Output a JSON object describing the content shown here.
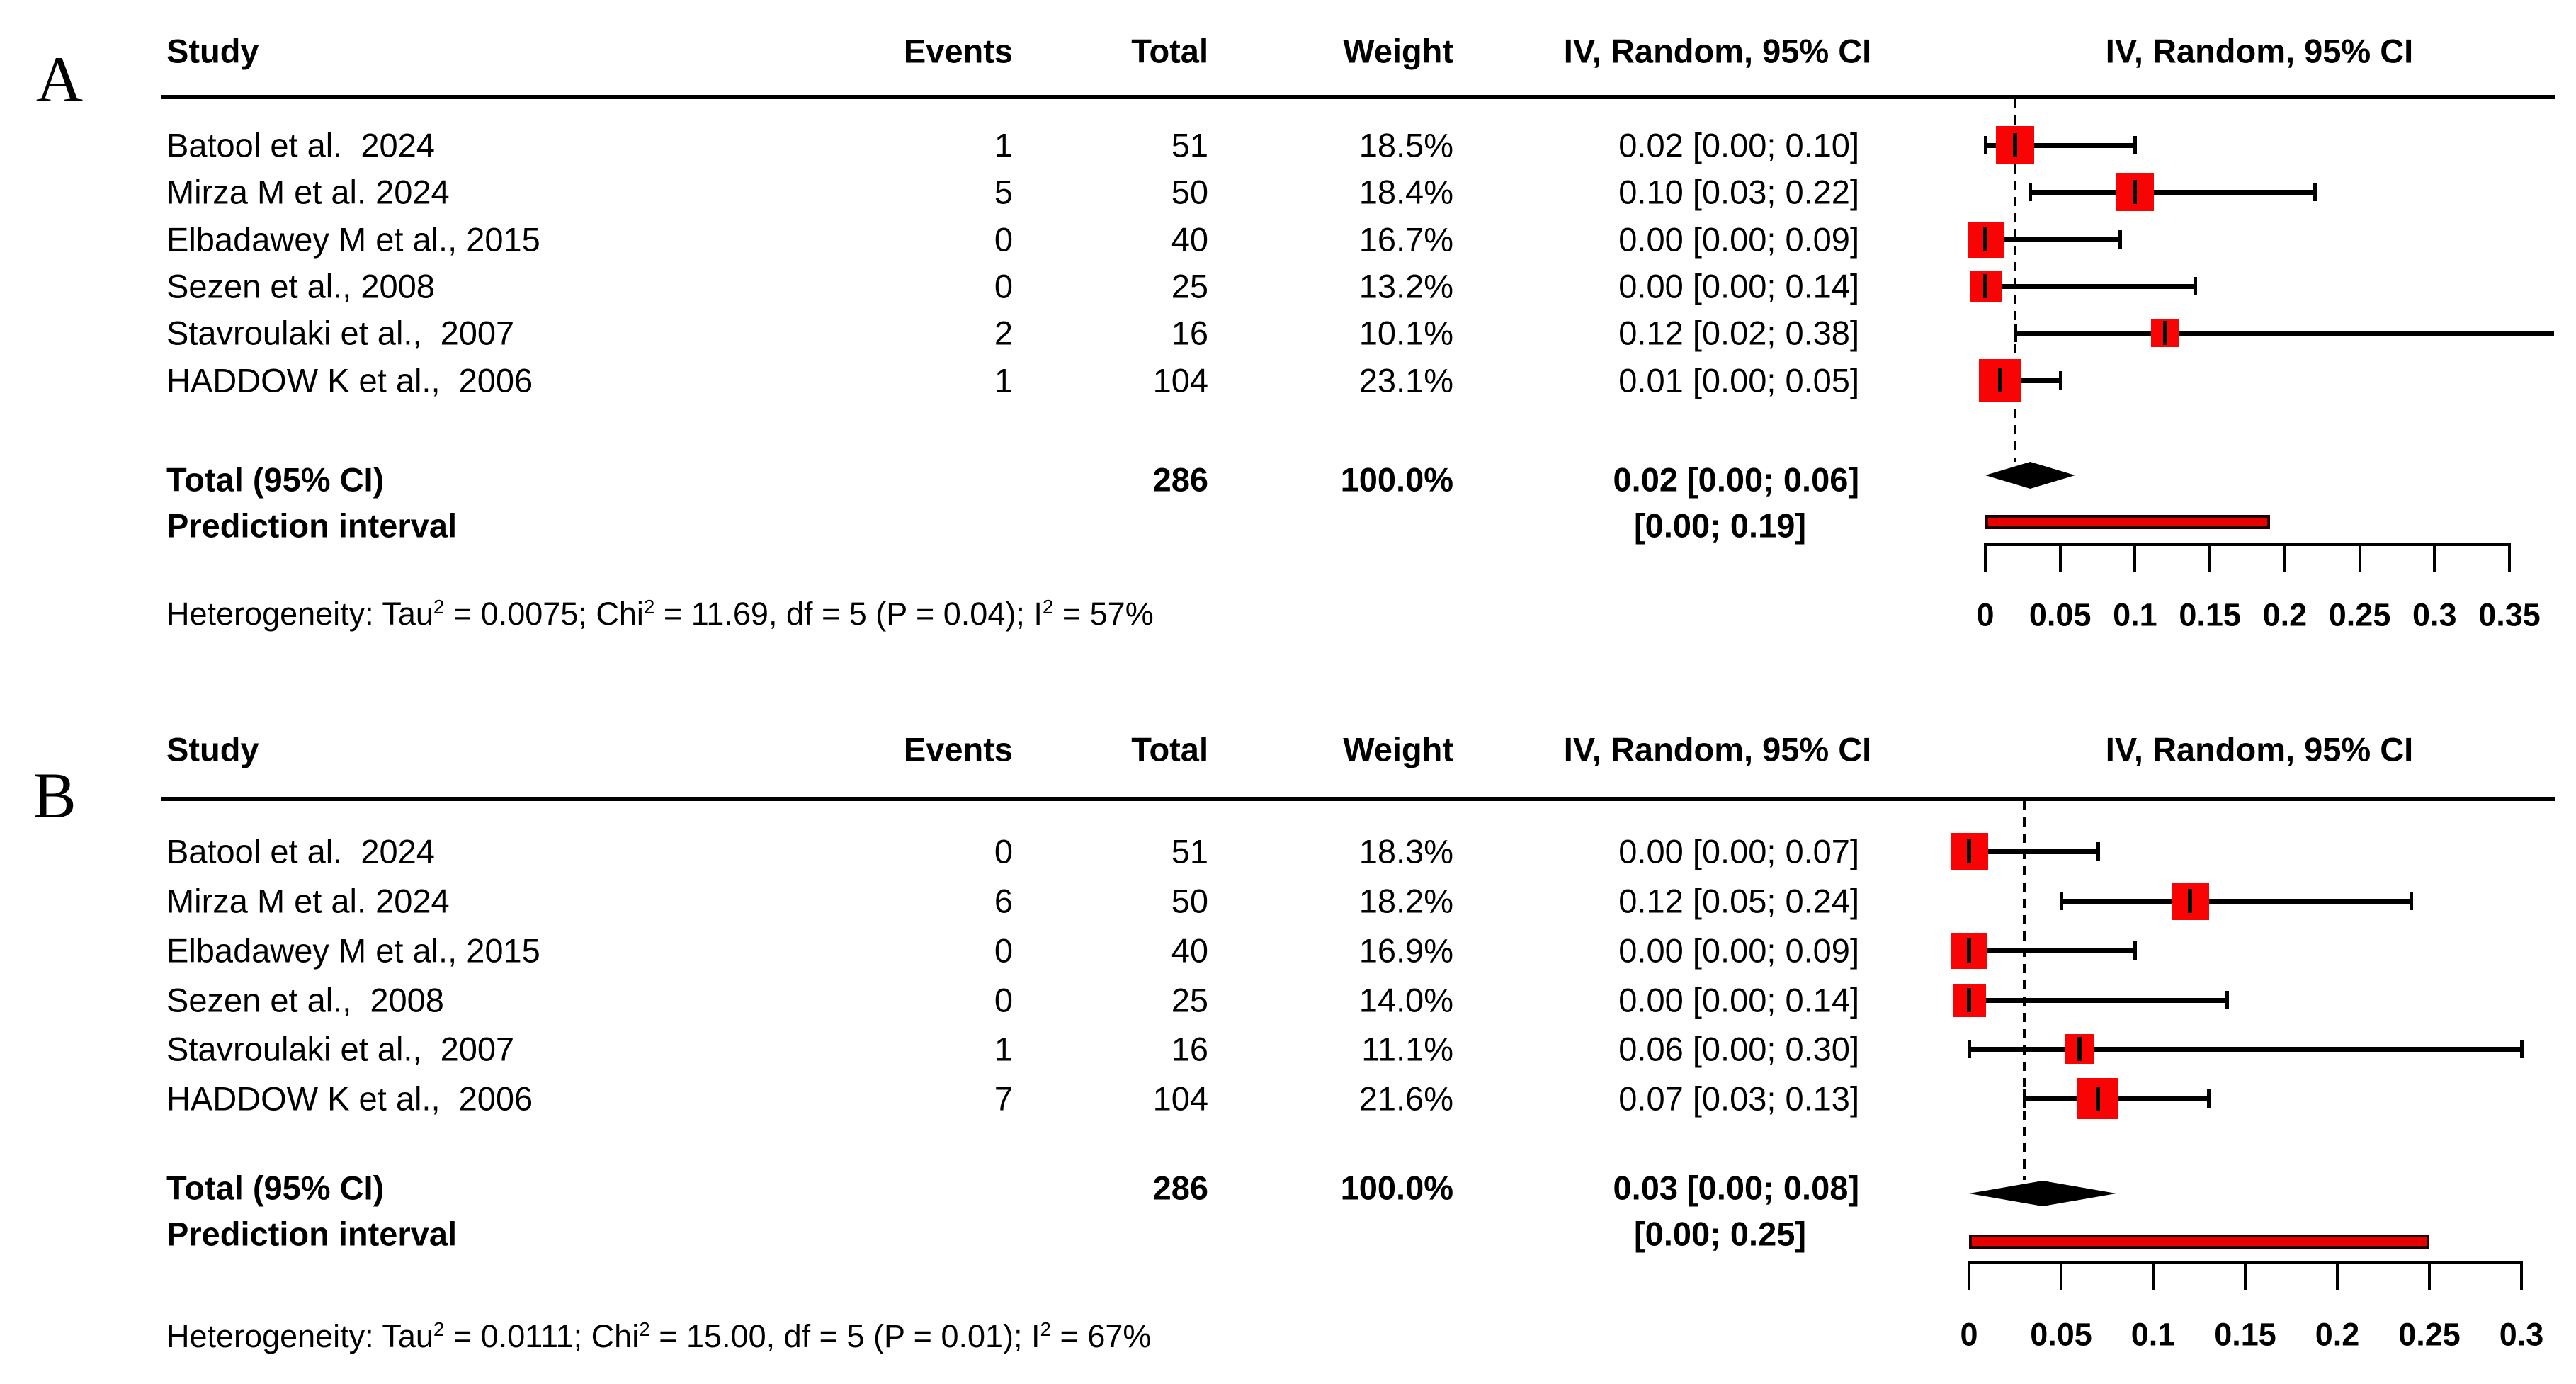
{
  "chart_data": [
    {
      "type": "scatter",
      "subtype": "forest-plot",
      "panel_label": "A",
      "columns": {
        "study": "Study",
        "events": "Events",
        "total": "Total",
        "weight": "Weight",
        "effect": "IV, Random, 95% CI",
        "plot": "IV, Random, 95% CI"
      },
      "studies": [
        {
          "study": "Batool et al.  2024",
          "events": "1",
          "total": "51",
          "weight": "18.5%",
          "effect": "0.02 [0.00; 0.10]",
          "est": 0.02,
          "lo": 0.0,
          "hi": 0.1,
          "w": 18.5
        },
        {
          "study": "Mirza M et al. 2024",
          "events": "5",
          "total": "50",
          "weight": "18.4%",
          "effect": "0.10 [0.03; 0.22]",
          "est": 0.1,
          "lo": 0.03,
          "hi": 0.22,
          "w": 18.4
        },
        {
          "study": "Elbadawey M et al., 2015",
          "events": "0",
          "total": "40",
          "weight": "16.7%",
          "effect": "0.00 [0.00; 0.09]",
          "est": 0.0,
          "lo": 0.0,
          "hi": 0.09,
          "w": 16.7
        },
        {
          "study": "Sezen et al., 2008",
          "events": "0",
          "total": "25",
          "weight": "13.2%",
          "effect": "0.00 [0.00; 0.14]",
          "est": 0.0,
          "lo": 0.0,
          "hi": 0.14,
          "w": 13.2
        },
        {
          "study": "Stavroulaki et al.,  2007",
          "events": "2",
          "total": "16",
          "weight": "10.1%",
          "effect": "0.12 [0.02; 0.38]",
          "est": 0.12,
          "lo": 0.02,
          "hi": 0.38,
          "w": 10.1
        },
        {
          "study": "HADDOW K et al.,  2006",
          "events": "1",
          "total": "104",
          "weight": "23.1%",
          "effect": "0.01 [0.00; 0.05]",
          "est": 0.01,
          "lo": 0.0,
          "hi": 0.05,
          "w": 23.1
        }
      ],
      "total": {
        "label": "Total (95% CI)",
        "total": "286",
        "weight": "100.0%",
        "effect": "0.02 [0.00; 0.06]",
        "est": 0.02,
        "lo": 0.0,
        "hi": 0.06
      },
      "prediction": {
        "label": "Prediction interval",
        "effect": "[0.00; 0.19]",
        "lo": 0.0,
        "hi": 0.19
      },
      "heterogeneity": "Heterogeneity: Tau² = 0.0075; Chi² = 11.69, df = 5 (P = 0.04); I² = 57%",
      "pooled_est": 0.02,
      "axis": {
        "min": 0,
        "max": 0.35,
        "ticks": [
          0,
          0.05,
          0.1,
          0.15,
          0.2,
          0.25,
          0.3,
          0.35
        ],
        "tick_labels": [
          "0",
          "0.05",
          "0.1",
          "0.15",
          "0.2",
          "0.25",
          "0.3",
          "0.35"
        ]
      },
      "square_color": "#f90404",
      "bar_fill": "#e60000",
      "bar_border": "#230000"
    },
    {
      "type": "scatter",
      "subtype": "forest-plot",
      "panel_label": "B",
      "columns": {
        "study": "Study",
        "events": "Events",
        "total": "Total",
        "weight": "Weight",
        "effect": "IV, Random, 95% CI",
        "plot": "IV, Random, 95% CI"
      },
      "studies": [
        {
          "study": "Batool et al.  2024",
          "events": "0",
          "total": "51",
          "weight": "18.3%",
          "effect": "0.00 [0.00; 0.07]",
          "est": 0.0,
          "lo": 0.0,
          "hi": 0.07,
          "w": 18.3
        },
        {
          "study": "Mirza M et al. 2024",
          "events": "6",
          "total": "50",
          "weight": "18.2%",
          "effect": "0.12 [0.05; 0.24]",
          "est": 0.12,
          "lo": 0.05,
          "hi": 0.24,
          "w": 18.2
        },
        {
          "study": "Elbadawey M et al., 2015",
          "events": "0",
          "total": "40",
          "weight": "16.9%",
          "effect": "0.00 [0.00; 0.09]",
          "est": 0.0,
          "lo": 0.0,
          "hi": 0.09,
          "w": 16.9
        },
        {
          "study": "Sezen et al.,  2008",
          "events": "0",
          "total": "25",
          "weight": "14.0%",
          "effect": "0.00 [0.00; 0.14]",
          "est": 0.0,
          "lo": 0.0,
          "hi": 0.14,
          "w": 14.0
        },
        {
          "study": "Stavroulaki et al.,  2007",
          "events": "1",
          "total": "16",
          "weight": "11.1%",
          "effect": "0.06 [0.00; 0.30]",
          "est": 0.06,
          "lo": 0.0,
          "hi": 0.3,
          "w": 11.1
        },
        {
          "study": "HADDOW K et al.,  2006",
          "events": "7",
          "total": "104",
          "weight": "21.6%",
          "effect": "0.07 [0.03; 0.13]",
          "est": 0.07,
          "lo": 0.03,
          "hi": 0.13,
          "w": 21.6
        }
      ],
      "total": {
        "label": "Total (95% CI)",
        "total": "286",
        "weight": "100.0%",
        "effect": "0.03 [0.00; 0.08]",
        "est": 0.03,
        "lo": 0.0,
        "hi": 0.08
      },
      "prediction": {
        "label": "Prediction interval",
        "effect": "[0.00; 0.25]",
        "lo": 0.0,
        "hi": 0.25
      },
      "heterogeneity": "Heterogeneity: Tau² = 0.0111; Chi² = 15.00, df = 5 (P = 0.01); I² = 67%",
      "pooled_est": 0.03,
      "axis": {
        "min": 0,
        "max": 0.3,
        "ticks": [
          0,
          0.05,
          0.1,
          0.15,
          0.2,
          0.25,
          0.3
        ],
        "tick_labels": [
          "0",
          "0.05",
          "0.1",
          "0.15",
          "0.2",
          "0.25",
          "0.3"
        ]
      },
      "square_color": "#f90404",
      "bar_fill": "#e60000",
      "bar_border": "#230000"
    }
  ]
}
